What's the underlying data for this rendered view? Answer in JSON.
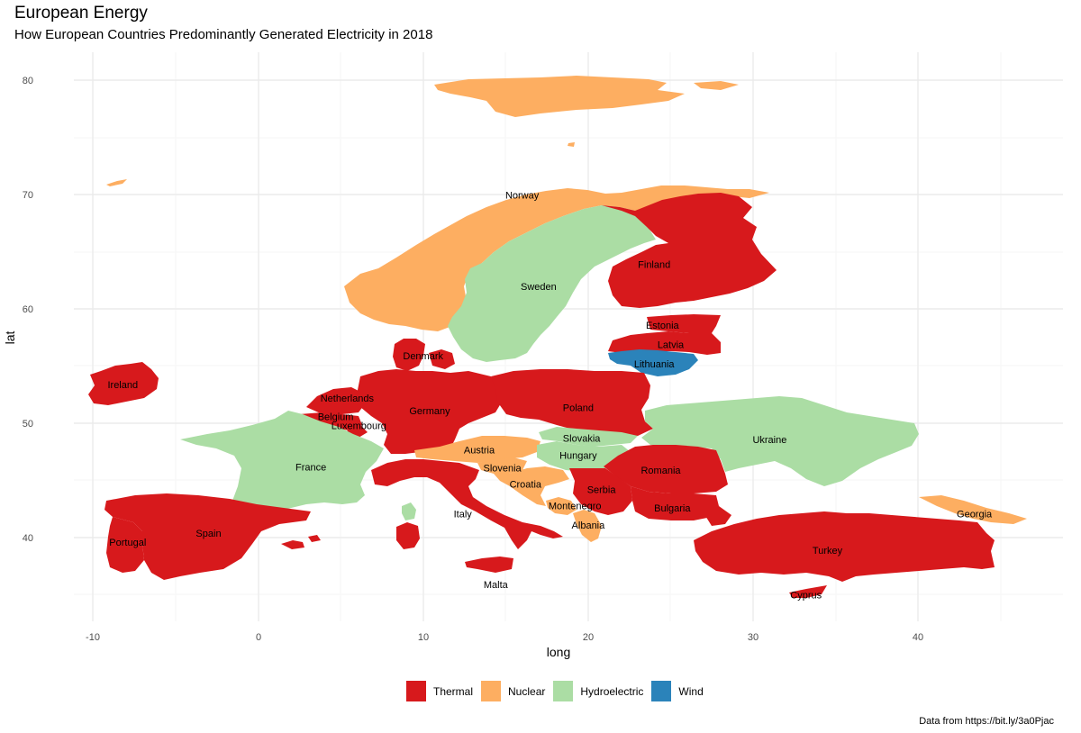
{
  "title": "European Energy",
  "subtitle": "How European Countries Predominantly Generated Electricity in 2018",
  "caption": "Data from https://bit.ly/3a0Pjac",
  "axes": {
    "x": {
      "label": "long",
      "ticks": [
        "-10",
        "0",
        "10",
        "20",
        "30",
        "40"
      ]
    },
    "y": {
      "label": "lat",
      "ticks": [
        "40",
        "50",
        "60",
        "70",
        "80"
      ]
    }
  },
  "colors": {
    "Thermal": "#d7191c",
    "Nuclear": "#fdae61",
    "Hydroelectric": "#abdda4",
    "Wind": "#2b83ba"
  },
  "legend": [
    {
      "key": "Thermal",
      "label": "Thermal"
    },
    {
      "key": "Nuclear",
      "label": "Nuclear"
    },
    {
      "key": "Hydroelectric",
      "label": "Hydroelectric"
    },
    {
      "key": "Wind",
      "label": "Wind"
    }
  ],
  "chart_data": {
    "type": "choropleth map",
    "x_range": [
      -13,
      49
    ],
    "y_range": [
      33,
      82
    ],
    "countries": [
      {
        "name": "Norway",
        "type": "Nuclear",
        "label_lon": 16.0,
        "label_lat": 70.0
      },
      {
        "name": "Sweden",
        "type": "Hydroelectric",
        "label_lon": 17.0,
        "label_lat": 62.0
      },
      {
        "name": "Finland",
        "type": "Thermal",
        "label_lon": 24.0,
        "label_lat": 63.9
      },
      {
        "name": "Estonia",
        "type": "Thermal",
        "label_lon": 24.5,
        "label_lat": 58.6
      },
      {
        "name": "Latvia",
        "type": "Thermal",
        "label_lon": 25.0,
        "label_lat": 56.9
      },
      {
        "name": "Lithuania",
        "type": "Wind",
        "label_lon": 24.0,
        "label_lat": 55.2
      },
      {
        "name": "Denmark",
        "type": "Thermal",
        "label_lon": 10.0,
        "label_lat": 55.9
      },
      {
        "name": "Ireland",
        "type": "Thermal",
        "label_lon": -8.2,
        "label_lat": 53.4
      },
      {
        "name": "Netherlands",
        "type": "Thermal",
        "label_lon": 5.4,
        "label_lat": 52.2
      },
      {
        "name": "Belgium",
        "type": "Thermal",
        "label_lon": 4.7,
        "label_lat": 50.6
      },
      {
        "name": "Luxembourg",
        "type": "Thermal",
        "label_lon": 6.1,
        "label_lat": 49.8
      },
      {
        "name": "Germany",
        "type": "Thermal",
        "label_lon": 10.4,
        "label_lat": 51.1
      },
      {
        "name": "Poland",
        "type": "Thermal",
        "label_lon": 19.4,
        "label_lat": 51.4
      },
      {
        "name": "Slovakia",
        "type": "Hydroelectric",
        "label_lon": 19.6,
        "label_lat": 48.7
      },
      {
        "name": "Austria",
        "type": "Nuclear",
        "label_lon": 13.4,
        "label_lat": 47.7
      },
      {
        "name": "Hungary",
        "type": "Hydroelectric",
        "label_lon": 19.4,
        "label_lat": 47.2
      },
      {
        "name": "Ukraine",
        "type": "Hydroelectric",
        "label_lon": 31.0,
        "label_lat": 48.6
      },
      {
        "name": "France",
        "type": "Hydroelectric",
        "label_lon": 3.2,
        "label_lat": 46.2
      },
      {
        "name": "Slovenia",
        "type": "Nuclear",
        "label_lon": 14.8,
        "label_lat": 46.1
      },
      {
        "name": "Romania",
        "type": "Thermal",
        "label_lon": 24.4,
        "label_lat": 45.9
      },
      {
        "name": "Croatia",
        "type": "Nuclear",
        "label_lon": 16.2,
        "label_lat": 44.7
      },
      {
        "name": "Serbia",
        "type": "Thermal",
        "label_lon": 20.8,
        "label_lat": 44.2
      },
      {
        "name": "Montenegro",
        "type": "Nuclear",
        "label_lon": 19.2,
        "label_lat": 42.8
      },
      {
        "name": "Bulgaria",
        "type": "Thermal",
        "label_lon": 25.1,
        "label_lat": 42.6
      },
      {
        "name": "Italy",
        "type": "Thermal",
        "label_lon": 12.4,
        "label_lat": 42.1
      },
      {
        "name": "Albania",
        "type": "Nuclear",
        "label_lon": 20.0,
        "label_lat": 41.1
      },
      {
        "name": "Georgia",
        "type": "Nuclear",
        "label_lon": 43.4,
        "label_lat": 42.1
      },
      {
        "name": "Spain",
        "type": "Thermal",
        "label_lon": -3.0,
        "label_lat": 40.4
      },
      {
        "name": "Portugal",
        "type": "Thermal",
        "label_lon": -7.9,
        "label_lat": 39.6
      },
      {
        "name": "Turkey",
        "type": "Thermal",
        "label_lon": 34.5,
        "label_lat": 38.9
      },
      {
        "name": "Malta",
        "type": "Thermal",
        "label_lon": 14.4,
        "label_lat": 35.9
      },
      {
        "name": "Cyprus",
        "type": "Thermal",
        "label_lon": 33.2,
        "label_lat": 35.0
      }
    ]
  }
}
